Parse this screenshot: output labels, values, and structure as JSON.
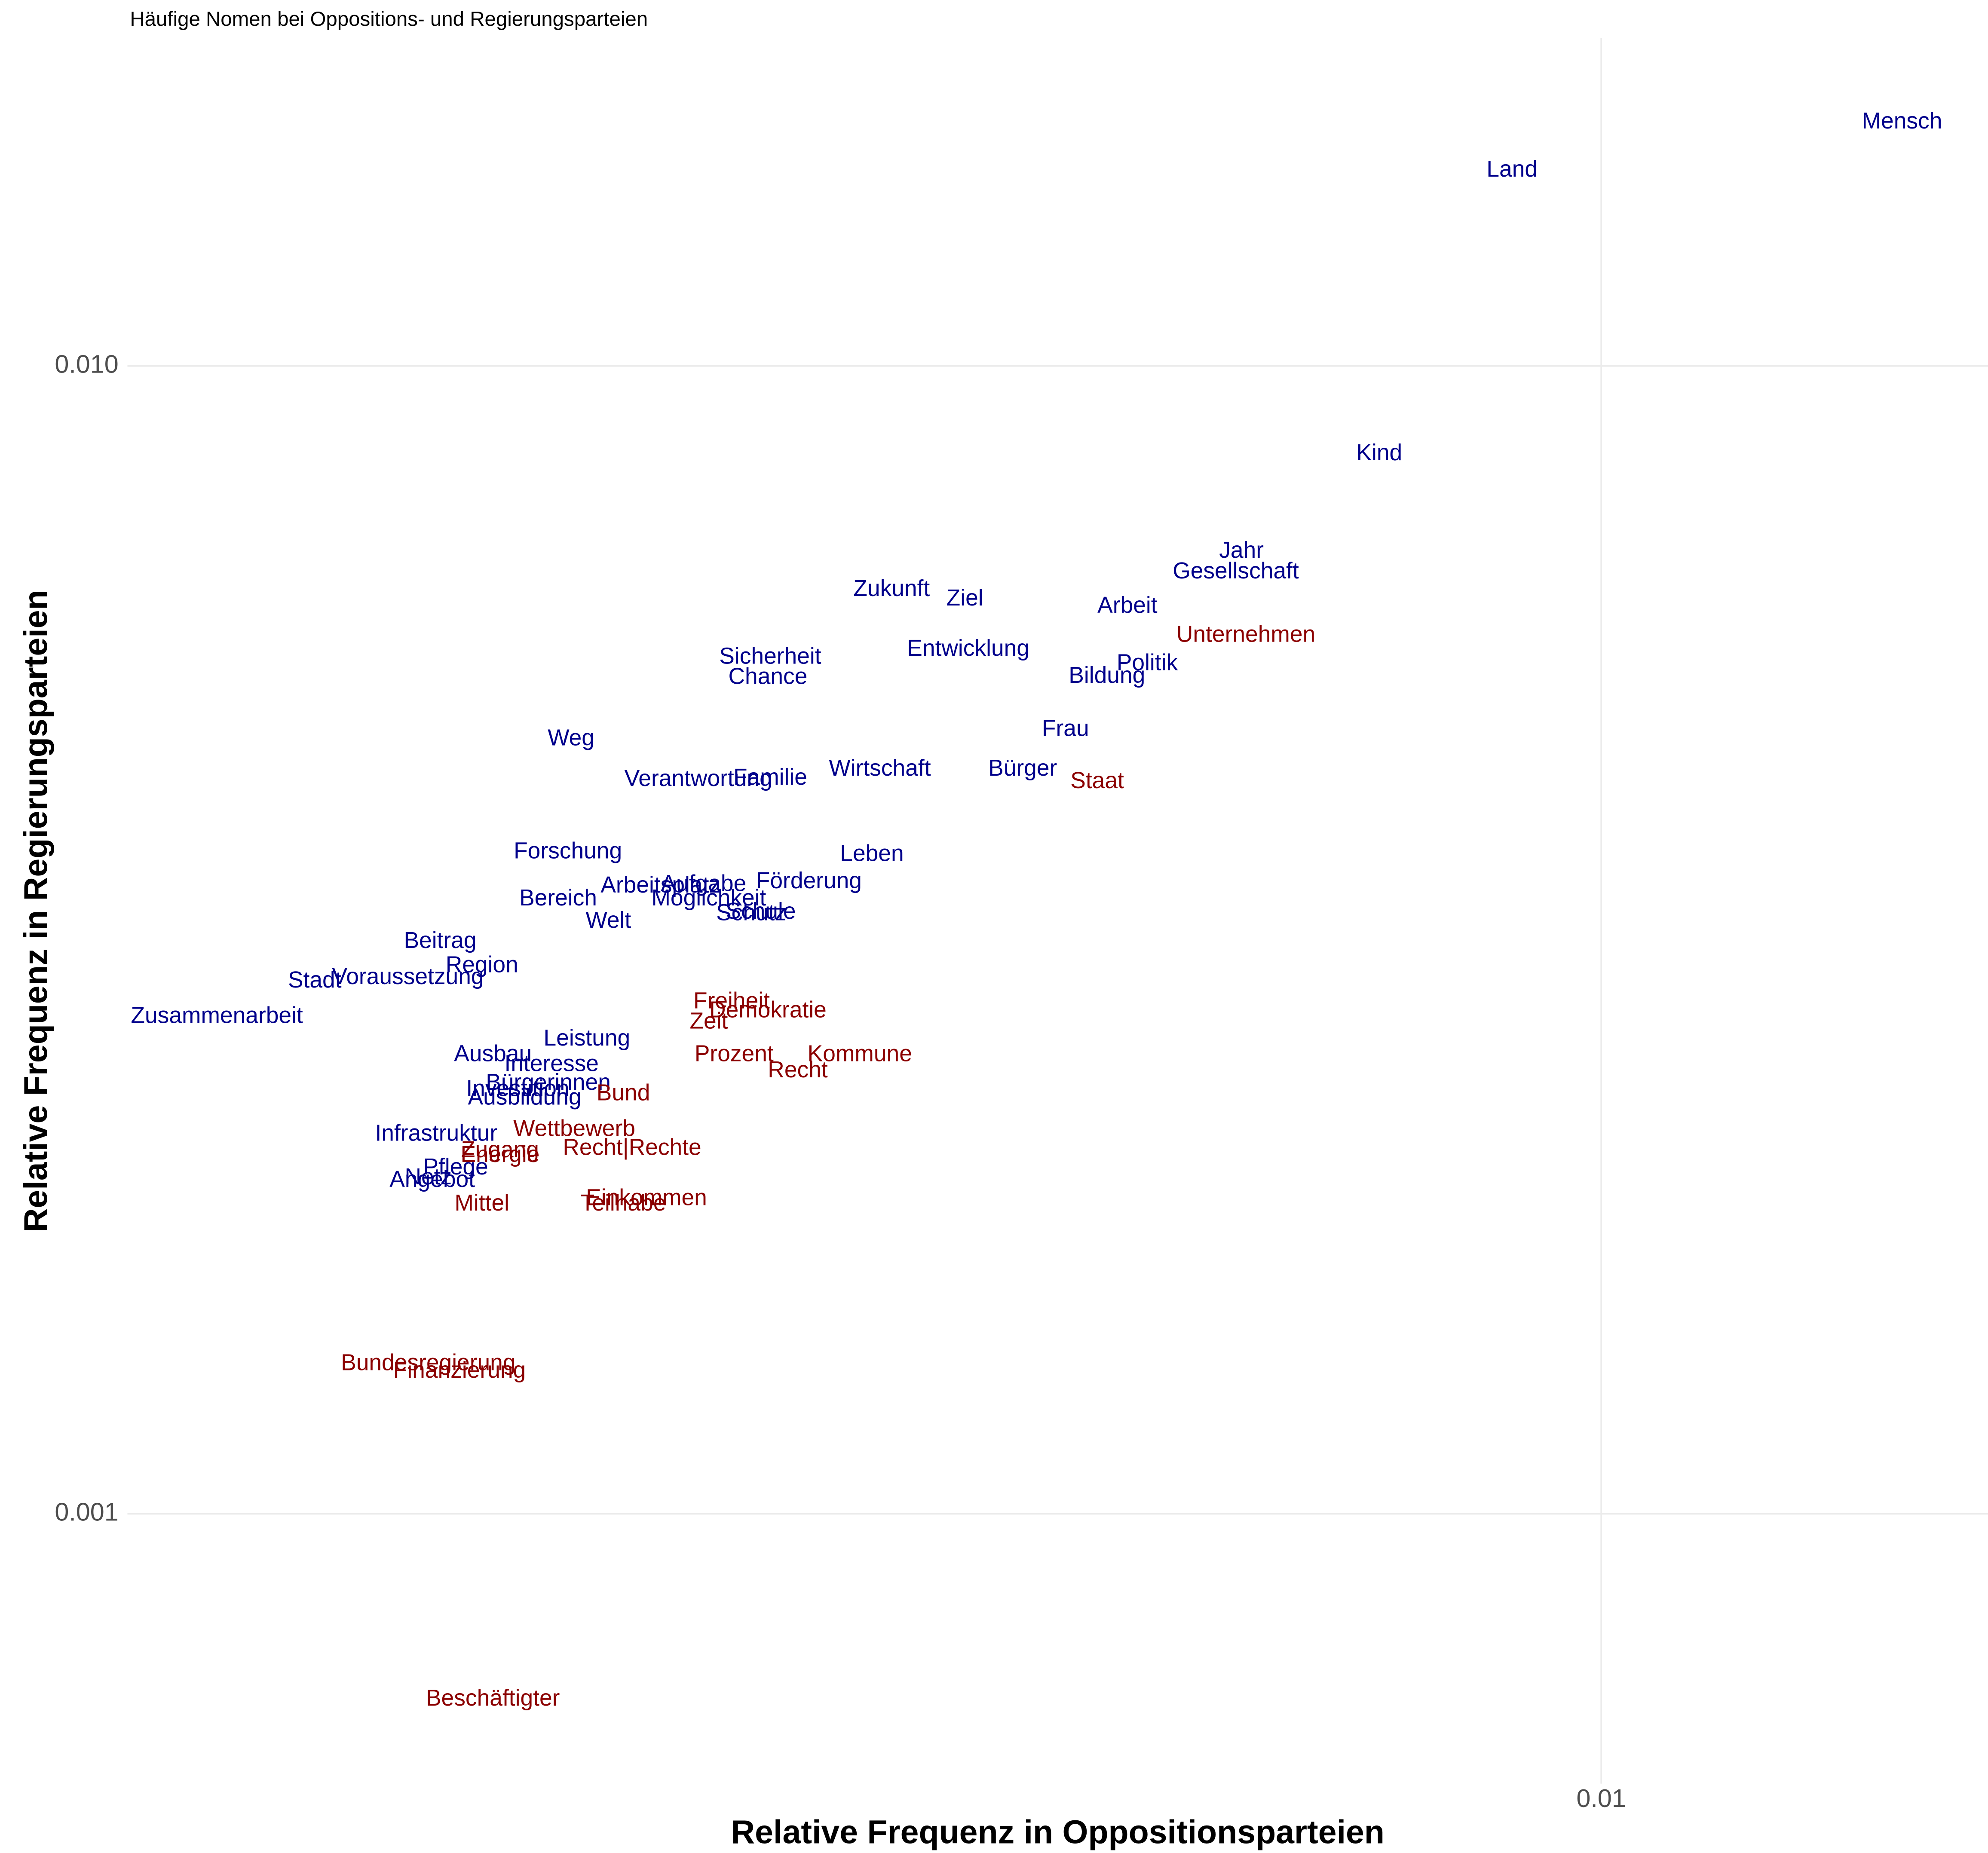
{
  "chart_data": {
    "type": "text-scatter",
    "title": "Häufige Nomen bei Oppositions- und Regierungsparteien",
    "x_label": "Relative Frequenz in Oppositionsparteien",
    "y_label": "Relative Frequenz in Regierungsparteien",
    "log_x": true,
    "log_y": true,
    "grid": true,
    "xlim": [
      0.001,
      0.0183
    ],
    "ylim": [
      0.000582,
      0.0193
    ],
    "xticks": [
      0.01
    ],
    "yticks": [
      {
        "value": 0.001,
        "label": "0.001"
      },
      {
        "value": 0.01,
        "label": "0.010"
      }
    ],
    "labels": [
      "Mensch",
      "Land",
      "Kind",
      "Jahr",
      "Gesellschaft",
      "Zukunft",
      "Ziel",
      "Arbeit",
      "Unternehmen",
      "Entwicklung",
      "Sicherheit",
      "Politik",
      "Bildung",
      "Chance",
      "Frau",
      "Weg",
      "Wirtschaft",
      "Bürger",
      "Staat",
      "Verantwortung",
      "Familie",
      "Forschung",
      "Leben",
      "Förderung",
      "Arbeitsplatz",
      "Aufgabe",
      "Bereich",
      "Möglichkeit",
      "Schule",
      "Schutz",
      "Welt",
      "Beitrag",
      "Region",
      "Stadt",
      "Voraussetzung",
      "Zusammenarbeit",
      "Freiheit",
      "Demokratie",
      "Zeit",
      "Leistung",
      "Ausbau",
      "Prozent",
      "Kommune",
      "Interesse",
      "Recht",
      "Bürgerinnen",
      "Investition",
      "Bund",
      "Ausbildung",
      "Infrastruktur",
      "Wettbewerb",
      "Zugang",
      "Recht|Rechte",
      "Energie",
      "Pflege",
      "Angebot",
      "Netz",
      "Einkommen",
      "Mittel",
      "Teilhabe",
      "Bundesregierung",
      "Finanzierung",
      "Beschäftigter"
    ],
    "x": [
      0.016,
      0.0087,
      0.00707,
      0.0057,
      0.00565,
      0.0033,
      0.0037,
      0.00477,
      0.00574,
      0.00372,
      0.00273,
      0.00492,
      0.00462,
      0.00272,
      0.00433,
      0.002,
      0.00324,
      0.00405,
      0.00455,
      0.00244,
      0.00273,
      0.00199,
      0.0032,
      0.0029,
      0.0023,
      0.00246,
      0.00196,
      0.00248,
      0.00269,
      0.00265,
      0.00212,
      0.00163,
      0.00174,
      0.00134,
      0.00155,
      0.00115,
      0.00257,
      0.00272,
      0.00248,
      0.00205,
      0.00177,
      0.00258,
      0.00314,
      0.00194,
      0.00285,
      0.00193,
      0.00184,
      0.00217,
      0.00186,
      0.00162,
      0.00201,
      0.00179,
      0.0022,
      0.00179,
      0.00167,
      0.00161,
      0.0016,
      0.00225,
      0.00174,
      0.00217,
      0.0016,
      0.00168,
      0.00177
    ],
    "y": [
      0.0163,
      0.0148,
      0.00838,
      0.00689,
      0.00661,
      0.00638,
      0.00626,
      0.00617,
      0.00582,
      0.00566,
      0.00557,
      0.0055,
      0.00536,
      0.00535,
      0.00482,
      0.00473,
      0.00445,
      0.00445,
      0.00434,
      0.00436,
      0.00437,
      0.00377,
      0.00375,
      0.00355,
      0.00352,
      0.00353,
      0.00343,
      0.00343,
      0.00334,
      0.00333,
      0.00328,
      0.00315,
      0.003,
      0.00291,
      0.00293,
      0.00271,
      0.00279,
      0.00274,
      0.00268,
      0.00259,
      0.00251,
      0.00251,
      0.00251,
      0.00246,
      0.00243,
      0.00237,
      0.00234,
      0.00232,
      0.0023,
      0.00214,
      0.00216,
      0.00207,
      0.00208,
      0.00205,
      0.002,
      0.00195,
      0.00196,
      0.00188,
      0.00186,
      0.00186,
      0.00135,
      0.00133,
      0.000689
    ],
    "colors": [
      "#00008b",
      "#00008b",
      "#00008b",
      "#00008b",
      "#00008b",
      "#00008b",
      "#00008b",
      "#00008b",
      "#8b0000",
      "#00008b",
      "#00008b",
      "#00008b",
      "#00008b",
      "#00008b",
      "#00008b",
      "#00008b",
      "#00008b",
      "#00008b",
      "#8b0000",
      "#00008b",
      "#00008b",
      "#00008b",
      "#00008b",
      "#00008b",
      "#00008b",
      "#00008b",
      "#00008b",
      "#00008b",
      "#00008b",
      "#00008b",
      "#00008b",
      "#00008b",
      "#00008b",
      "#00008b",
      "#00008b",
      "#00008b",
      "#8b0000",
      "#8b0000",
      "#8b0000",
      "#00008b",
      "#00008b",
      "#8b0000",
      "#8b0000",
      "#00008b",
      "#8b0000",
      "#00008b",
      "#00008b",
      "#8b0000",
      "#00008b",
      "#00008b",
      "#8b0000",
      "#8b0000",
      "#8b0000",
      "#8b0000",
      "#00008b",
      "#00008b",
      "#00008b",
      "#8b0000",
      "#8b0000",
      "#8b0000",
      "#8b0000",
      "#8b0000",
      "#8b0000"
    ]
  }
}
